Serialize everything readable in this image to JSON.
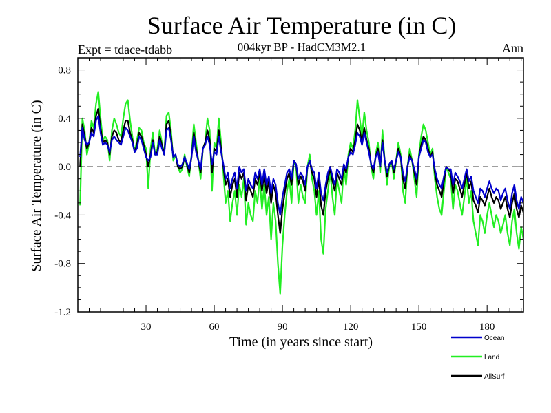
{
  "chart_data": {
    "type": "line",
    "title": "Surface Air Temperature (in C)",
    "subtitle": "004kyr BP - HadCM3M2.1",
    "experiment_label": "Expt = tdace-tdabb",
    "season_label": "Ann",
    "xlabel": "Time (in years since start)",
    "ylabel": "Surface Air Temperature (in C)",
    "xlim": [
      0,
      196
    ],
    "ylim": [
      -1.2,
      0.9
    ],
    "x_ticks": [
      30,
      60,
      90,
      120,
      150,
      180
    ],
    "y_ticks": [
      -1.2,
      -0.8,
      -0.4,
      0.0,
      0.4,
      0.8
    ],
    "y_tick_labels": [
      "-1.2",
      "-0.8",
      "-0.4",
      "0.0",
      "0.4",
      "0.8"
    ],
    "zero_line": {
      "value": 0.0,
      "style": "dashed"
    },
    "legend_position": "bottom-right",
    "series": [
      {
        "name": "Land",
        "color": "#22ee22",
        "values": [
          -0.32,
          0.4,
          0.3,
          0.1,
          0.2,
          0.38,
          0.32,
          0.52,
          0.62,
          0.4,
          0.22,
          0.25,
          0.22,
          0.05,
          0.3,
          0.4,
          0.35,
          0.28,
          0.25,
          0.4,
          0.52,
          0.55,
          0.38,
          0.25,
          0.12,
          0.22,
          0.32,
          0.3,
          0.2,
          0.15,
          -0.18,
          0.15,
          0.28,
          0.1,
          0.15,
          0.3,
          0.2,
          0.1,
          0.42,
          0.45,
          0.3,
          0.05,
          0.1,
          0.0,
          -0.05,
          -0.02,
          0.1,
          0.0,
          -0.08,
          0.1,
          0.35,
          0.2,
          0.05,
          -0.1,
          0.15,
          0.2,
          0.4,
          0.3,
          -0.2,
          0.2,
          0.15,
          0.4,
          0.2,
          -0.05,
          -0.3,
          -0.2,
          -0.45,
          -0.3,
          -0.2,
          -0.4,
          -0.15,
          -0.25,
          -0.1,
          -0.48,
          -0.3,
          -0.4,
          -0.45,
          -0.2,
          -0.3,
          -0.1,
          -0.35,
          -0.15,
          -0.4,
          -0.25,
          -0.6,
          -0.3,
          -0.45,
          -0.8,
          -1.05,
          -0.65,
          -0.4,
          -0.2,
          -0.1,
          -0.3,
          0.05,
          0.0,
          -0.3,
          -0.15,
          -0.25,
          -0.3,
          0.0,
          0.1,
          -0.1,
          -0.2,
          -0.4,
          -0.2,
          -0.6,
          -0.72,
          -0.35,
          -0.2,
          -0.05,
          -0.25,
          -0.4,
          -0.1,
          -0.2,
          -0.3,
          0.0,
          -0.15,
          0.1,
          0.2,
          0.15,
          0.3,
          0.55,
          0.4,
          0.25,
          0.45,
          0.3,
          0.2,
          0.0,
          -0.1,
          0.1,
          0.2,
          -0.05,
          0.3,
          0.05,
          -0.15,
          0.0,
          0.05,
          -0.1,
          0.05,
          0.2,
          0.1,
          -0.2,
          -0.3,
          0.0,
          0.15,
          0.05,
          -0.1,
          -0.25,
          0.1,
          0.25,
          0.35,
          0.3,
          0.2,
          0.1,
          0.15,
          -0.1,
          -0.25,
          -0.35,
          -0.4,
          -0.2,
          0.0,
          -0.05,
          -0.1,
          -0.35,
          -0.15,
          -0.2,
          -0.3,
          -0.4,
          -0.25,
          -0.1,
          -0.3,
          -0.2,
          -0.45,
          -0.55,
          -0.65,
          -0.4,
          -0.45,
          -0.55,
          -0.4,
          -0.3,
          -0.4,
          -0.5,
          -0.4,
          -0.45,
          -0.55,
          -0.48,
          -0.4,
          -0.55,
          -0.65,
          -0.45,
          -0.35,
          -0.55,
          -0.68,
          -0.5,
          -0.6,
          -0.45,
          -0.55,
          -0.5,
          -0.42
        ]
      },
      {
        "name": "AllSurf",
        "color": "#000000",
        "values": [
          0.0,
          0.35,
          0.25,
          0.15,
          0.2,
          0.32,
          0.28,
          0.42,
          0.48,
          0.32,
          0.2,
          0.22,
          0.2,
          0.1,
          0.25,
          0.3,
          0.28,
          0.22,
          0.2,
          0.3,
          0.38,
          0.38,
          0.28,
          0.22,
          0.12,
          0.18,
          0.28,
          0.25,
          0.18,
          0.1,
          0.0,
          0.1,
          0.22,
          0.1,
          0.12,
          0.25,
          0.18,
          0.1,
          0.35,
          0.38,
          0.25,
          0.08,
          0.1,
          0.0,
          -0.02,
          0.0,
          0.08,
          0.02,
          -0.05,
          0.08,
          0.28,
          0.15,
          0.05,
          -0.05,
          0.15,
          0.2,
          0.3,
          0.22,
          -0.05,
          0.15,
          0.12,
          0.3,
          0.15,
          0.0,
          -0.15,
          -0.1,
          -0.25,
          -0.15,
          -0.1,
          -0.25,
          -0.05,
          -0.1,
          -0.05,
          -0.28,
          -0.15,
          -0.2,
          -0.25,
          -0.1,
          -0.15,
          -0.05,
          -0.2,
          -0.05,
          -0.22,
          -0.12,
          -0.3,
          -0.15,
          -0.22,
          -0.4,
          -0.55,
          -0.35,
          -0.22,
          -0.1,
          -0.05,
          -0.15,
          0.05,
          0.02,
          -0.15,
          -0.08,
          -0.12,
          -0.2,
          0.0,
          0.05,
          -0.05,
          -0.1,
          -0.25,
          -0.1,
          -0.32,
          -0.4,
          -0.2,
          -0.1,
          -0.02,
          -0.12,
          -0.2,
          -0.05,
          -0.1,
          -0.15,
          0.0,
          -0.05,
          0.08,
          0.15,
          0.12,
          0.22,
          0.35,
          0.3,
          0.2,
          0.32,
          0.22,
          0.15,
          0.02,
          -0.05,
          0.08,
          0.15,
          0.0,
          0.22,
          0.05,
          -0.08,
          0.02,
          0.05,
          -0.05,
          0.05,
          0.15,
          0.08,
          -0.1,
          -0.18,
          0.0,
          0.1,
          0.05,
          -0.05,
          -0.15,
          0.08,
          0.18,
          0.25,
          0.22,
          0.15,
          0.08,
          0.12,
          -0.05,
          -0.15,
          -0.2,
          -0.25,
          -0.12,
          0.0,
          -0.02,
          -0.05,
          -0.22,
          -0.1,
          -0.12,
          -0.18,
          -0.25,
          -0.15,
          -0.05,
          -0.18,
          -0.12,
          -0.28,
          -0.32,
          -0.38,
          -0.25,
          -0.28,
          -0.32,
          -0.25,
          -0.18,
          -0.25,
          -0.3,
          -0.25,
          -0.28,
          -0.35,
          -0.3,
          -0.25,
          -0.35,
          -0.42,
          -0.3,
          -0.22,
          -0.35,
          -0.42,
          -0.32,
          -0.38,
          -0.28,
          -0.35,
          -0.32,
          -0.25
        ]
      },
      {
        "name": "Ocean",
        "color": "#0000cc",
        "values": [
          0.08,
          0.32,
          0.22,
          0.18,
          0.2,
          0.28,
          0.25,
          0.38,
          0.42,
          0.28,
          0.18,
          0.2,
          0.18,
          0.12,
          0.22,
          0.25,
          0.22,
          0.2,
          0.18,
          0.25,
          0.32,
          0.3,
          0.25,
          0.2,
          0.12,
          0.15,
          0.25,
          0.22,
          0.15,
          0.08,
          0.05,
          0.08,
          0.2,
          0.1,
          0.1,
          0.22,
          0.15,
          0.1,
          0.3,
          0.32,
          0.22,
          0.08,
          0.1,
          0.02,
          0.0,
          0.02,
          0.08,
          0.03,
          -0.02,
          0.08,
          0.25,
          0.12,
          0.05,
          -0.02,
          0.15,
          0.18,
          0.25,
          0.18,
          0.02,
          0.12,
          0.1,
          0.25,
          0.12,
          0.02,
          -0.1,
          -0.05,
          -0.18,
          -0.1,
          -0.05,
          -0.18,
          0.0,
          -0.05,
          -0.02,
          -0.2,
          -0.1,
          -0.15,
          -0.18,
          -0.05,
          -0.1,
          -0.02,
          -0.15,
          -0.02,
          -0.15,
          -0.08,
          -0.22,
          -0.1,
          -0.15,
          -0.3,
          -0.4,
          -0.25,
          -0.15,
          -0.05,
          -0.02,
          -0.1,
          0.05,
          0.02,
          -0.1,
          -0.05,
          -0.08,
          -0.15,
          0.0,
          0.05,
          -0.02,
          -0.05,
          -0.18,
          -0.05,
          -0.22,
          -0.28,
          -0.15,
          -0.05,
          0.0,
          -0.08,
          -0.15,
          -0.02,
          -0.05,
          -0.1,
          0.02,
          -0.02,
          0.08,
          0.12,
          0.1,
          0.18,
          0.28,
          0.25,
          0.18,
          0.28,
          0.2,
          0.12,
          0.02,
          -0.02,
          0.08,
          0.12,
          0.0,
          0.2,
          0.05,
          -0.05,
          0.02,
          0.05,
          -0.02,
          0.05,
          0.12,
          0.08,
          -0.05,
          -0.12,
          0.0,
          0.08,
          0.05,
          -0.02,
          -0.1,
          0.08,
          0.15,
          0.22,
          0.2,
          0.12,
          0.08,
          0.1,
          -0.02,
          -0.1,
          -0.15,
          -0.18,
          -0.08,
          0.0,
          -0.02,
          -0.02,
          -0.15,
          -0.05,
          -0.08,
          -0.12,
          -0.18,
          -0.1,
          -0.02,
          -0.12,
          -0.08,
          -0.2,
          -0.25,
          -0.3,
          -0.18,
          -0.2,
          -0.25,
          -0.18,
          -0.12,
          -0.18,
          -0.22,
          -0.18,
          -0.2,
          -0.28,
          -0.22,
          -0.18,
          -0.28,
          -0.35,
          -0.22,
          -0.15,
          -0.28,
          -0.35,
          -0.25,
          -0.3,
          -0.2,
          -0.28,
          -0.25,
          -0.18
        ]
      }
    ],
    "legend": [
      {
        "name": "Ocean",
        "color": "#0000cc"
      },
      {
        "name": "Land",
        "color": "#22ee22"
      },
      {
        "name": "AllSurf",
        "color": "#000000"
      }
    ]
  }
}
